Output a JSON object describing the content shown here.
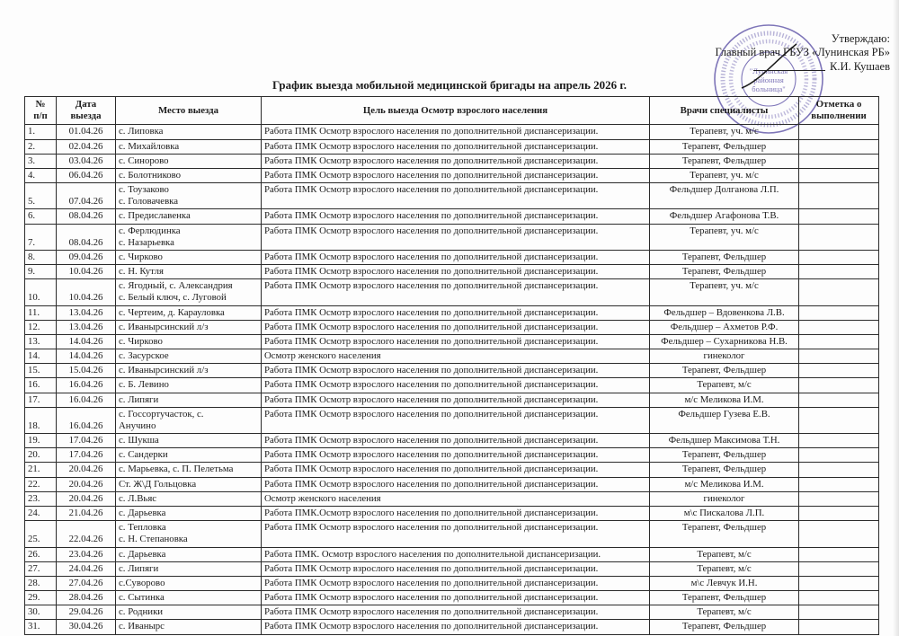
{
  "approval": {
    "line1": "Утверждаю:",
    "line2": "Главный врач ГБУЗ «Лунинская РБ»",
    "line3": "К.И. Кушаев"
  },
  "stamp": {
    "center_line1": "\"Лунинская",
    "center_line2": "районная",
    "center_line3": "больница\"",
    "color": "#5f54a8"
  },
  "title": "График выезда мобильной медицинской бригады  на апрель 2026  г.",
  "table": {
    "headers": {
      "num": "№\nп/п",
      "date": "Дата\nвыезда",
      "place": "Место выезда",
      "purpose": "Цель выезда Осмотр взрослого   населения",
      "doctors": "Врачи специалисты",
      "mark": "Отметка о\nвыполнении"
    },
    "rows": [
      {
        "num": "1.",
        "date": "01.04.26",
        "place": "с. Липовка",
        "purpose": "Работа ПМК Осмотр взрослого населения по дополнительной диспансеризации.",
        "doctors": "Терапевт, уч. м/с",
        "mark": ""
      },
      {
        "num": "2.",
        "date": "02.04.26",
        "place": "с. Михайловка",
        "purpose": "Работа ПМК Осмотр взрослого населения по дополнительной диспансеризации.",
        "doctors": "Терапевт, Фельдшер",
        "mark": ""
      },
      {
        "num": "3.",
        "date": "03.04.26",
        "place": "с. Синорово",
        "purpose": "Работа ПМК Осмотр взрослого населения по дополнительной диспансеризации.",
        "doctors": "Терапевт, Фельдшер",
        "mark": ""
      },
      {
        "num": "4.",
        "date": "06.04.26",
        "place": "с. Болотниково",
        "purpose": "Работа ПМК Осмотр взрослого населения по дополнительной диспансеризации.",
        "doctors": "Терапевт, уч. м/с",
        "mark": ""
      },
      {
        "num": "5.",
        "date": "07.04.26",
        "place": "с. Тоузаково\nс. Головачевка",
        "purpose": "Работа ПМК Осмотр взрослого населения по дополнительной диспансеризации.",
        "doctors": "Фельдшер  Долганова Л.П.",
        "mark": ""
      },
      {
        "num": "6.",
        "date": "08.04.26",
        "place": "с. Предиславенка",
        "purpose": "Работа ПМК Осмотр взрослого населения по дополнительной диспансеризации.",
        "doctors": "Фельдшер  Агафонова Т.В.",
        "mark": ""
      },
      {
        "num": "7.",
        "date": "08.04.26",
        "place": "с. Ферлюдинка\nс. Назарьевка",
        "purpose": "Работа ПМК Осмотр взрослого населения по дополнительной диспансеризации.",
        "doctors": "Терапевт, уч. м/с",
        "mark": ""
      },
      {
        "num": "8.",
        "date": "09.04.26",
        "place": "с. Чирково",
        "purpose": "Работа ПМК Осмотр взрослого населения по дополнительной диспансеризации.",
        "doctors": "Терапевт, Фельдшер",
        "mark": ""
      },
      {
        "num": "9.",
        "date": "10.04.26",
        "place": "с. Н. Кутля",
        "purpose": "Работа ПМК Осмотр взрослого населения по дополнительной диспансеризации.",
        "doctors": "Терапевт, Фельдшер",
        "mark": ""
      },
      {
        "num": "10.",
        "date": "10.04.26",
        "place": "с. Ягодный, с. Александрия\nс. Белый ключ, с. Луговой",
        "purpose": "Работа ПМК Осмотр взрослого населения по дополнительной диспансеризации.",
        "doctors": "Терапевт, уч. м/с",
        "mark": ""
      },
      {
        "num": "11.",
        "date": "13.04.26",
        "place": "с. Чертеим, д. Карауловка",
        "purpose": "Работа ПМК Осмотр взрослого населения по дополнительной диспансеризации.",
        "doctors": "Фельдшер – Вдовенкова Л.В.",
        "mark": ""
      },
      {
        "num": "12.",
        "date": "13.04.26",
        "place": "с. Иванырсинский л/з",
        "purpose": "Работа ПМК Осмотр взрослого населения по дополнительной диспансеризации.",
        "doctors": "Фельдшер – Ахметов Р.Ф.",
        "mark": ""
      },
      {
        "num": "13.",
        "date": "14.04.26",
        "place": "с. Чирково",
        "purpose": "Работа ПМК Осмотр взрослого населения по дополнительной диспансеризации.",
        "doctors": "Фельдшер – Сухарникова Н.В.",
        "mark": ""
      },
      {
        "num": "14.",
        "date": "14.04.26",
        "place": "с. Засурское",
        "purpose": "Осмотр женского населения",
        "doctors": "гинеколог",
        "mark": ""
      },
      {
        "num": "15.",
        "date": "15.04.26",
        "place": "с. Иванырсинский л/з",
        "purpose": "Работа ПМК Осмотр взрослого населения по дополнительной диспансеризации.",
        "doctors": "Терапевт, Фельдшер",
        "mark": ""
      },
      {
        "num": "16.",
        "date": "16.04.26",
        "place": "с. Б. Левино",
        "purpose": "Работа ПМК Осмотр взрослого населения по дополнительной диспансеризации.",
        "doctors": "Терапевт, м/с",
        "mark": ""
      },
      {
        "num": "17.",
        "date": "16.04.26",
        "place": "с. Липяги",
        "purpose": "Работа ПМК Осмотр взрослого населения по дополнительной диспансеризации.",
        "doctors": "м/с Меликова И.М.",
        "mark": ""
      },
      {
        "num": "18.",
        "date": "16.04.26",
        "place": "с. Госсортучасток, с.\nАнучино",
        "purpose": "Работа ПМК Осмотр взрослого населения по дополнительной диспансеризации.",
        "doctors": "Фельдшер Гузева Е.В.",
        "mark": ""
      },
      {
        "num": "19.",
        "date": "17.04.26",
        "place": "с. Шукша",
        "purpose": "Работа ПМК Осмотр взрослого населения по дополнительной диспансеризации.",
        "doctors": "Фельдшер Максимова Т.Н.",
        "mark": ""
      },
      {
        "num": "20.",
        "date": "17.04.26",
        "place": "с. Сандерки",
        "purpose": "Работа ПМК Осмотр взрослого населения по дополнительной диспансеризации.",
        "doctors": "Терапевт, Фельдшер",
        "mark": ""
      },
      {
        "num": "21.",
        "date": "20.04.26",
        "place": "с. Марьевка, с. П. Пелетьма",
        "purpose": "Работа ПМК Осмотр взрослого населения по дополнительной диспансеризации.",
        "doctors": "Терапевт, Фельдшер",
        "mark": ""
      },
      {
        "num": "22.",
        "date": "20.04.26",
        "place": "Ст. Ж\\Д Гольцовка",
        "purpose": "Работа ПМК Осмотр взрослого населения по дополнительной диспансеризации.",
        "doctors": "м/с Меликова И.М.",
        "mark": ""
      },
      {
        "num": "23.",
        "date": "20.04.26",
        "place": "с. Л.Вьяс",
        "purpose": "Осмотр женского населения",
        "doctors": "гинеколог",
        "mark": ""
      },
      {
        "num": "24.",
        "date": "21.04.26",
        "place": "с. Дарьевка",
        "purpose": "Работа ПМК.Осмотр взрослого населения по дополнительной диспансеризации.",
        "doctors": "м\\с Пискалова Л.П.",
        "mark": ""
      },
      {
        "num": "25.",
        "date": "22.04.26",
        "place": "с. Тепловка\nс. Н. Степановка",
        "purpose": "Работа ПМК Осмотр взрослого населения по дополнительной диспансеризации.",
        "doctors": "Терапевт, Фельдшер",
        "mark": ""
      },
      {
        "num": "26.",
        "date": "23.04.26",
        "place": "с. Дарьевка",
        "purpose": "Работа ПМК. Осмотр взрослого населения по дополнительной диспансеризации.",
        "doctors": "Терапевт, м/с",
        "mark": ""
      },
      {
        "num": "27.",
        "date": "24.04.26",
        "place": "с. Липяги",
        "purpose": "Работа ПМК Осмотр взрослого населения по дополнительной диспансеризации.",
        "doctors": "Терапевт, м/с",
        "mark": ""
      },
      {
        "num": "28.",
        "date": "27.04.26",
        "place": "с.Суворово",
        "purpose": "Работа ПМК Осмотр взрослого населения по дополнительной диспансеризации.",
        "doctors": "м\\с Левчук И.Н.",
        "mark": ""
      },
      {
        "num": "29.",
        "date": "28.04.26",
        "place": "с. Сытинка",
        "purpose": "Работа ПМК Осмотр взрослого населения по дополнительной диспансеризации.",
        "doctors": "Терапевт, Фельдшер",
        "mark": ""
      },
      {
        "num": "30.",
        "date": "29.04.26",
        "place": "с. Родники",
        "purpose": "Работа ПМК Осмотр взрослого населения по дополнительной диспансеризации.",
        "doctors": "Терапевт, м/с",
        "mark": ""
      },
      {
        "num": "31.",
        "date": "30.04.26",
        "place": "с. Иванырс",
        "purpose": "Работа ПМК Осмотр взрослого населения по дополнительной диспансеризации.",
        "doctors": "Терапевт, Фельдшер",
        "mark": ""
      }
    ]
  }
}
